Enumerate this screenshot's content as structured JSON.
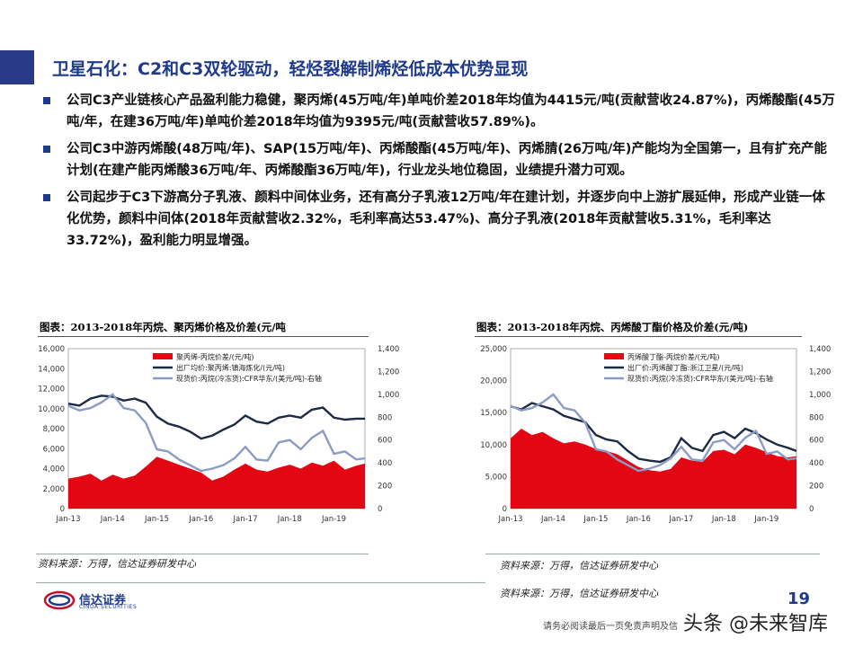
{
  "header": {
    "title": "卫星石化：C2和C3双轮驱动，轻烃裂解制烯烃低成本优势显现"
  },
  "bullets": [
    "公司C3产业链核心产品盈利能力稳健，聚丙烯(45万吨/年)单吨价差2018年均值为4415元/吨(贡献营收24.87%)，丙烯酸酯(45万吨/年，在建36万吨/年)单吨价差2018年均值为9395元/吨(贡献营收57.89%)。",
    "公司C3中游丙烯酸(48万吨/年)、SAP(15万吨/年)、丙烯酸酯(45万吨/年)、丙烯腈(26万吨/年)产能均为全国第一，且有扩充产能计划(在建产能丙烯酸36万吨/年、丙烯酸酯36万吨/年)，行业龙头地位稳固，业绩提升潜力可观。",
    "公司起步于C3下游高分子乳液、颜料中间体业务，还有高分子乳液12万吨/年在建计划，并逐步向中上游扩展延伸，形成产业链一体化优势，颜料中间体(2018年贡献营收2.32%，毛利率高达53.47%)、高分子乳液(2018年贡献营收5.31%，毛利率达33.72%)，盈利能力明显增强。"
  ],
  "colors": {
    "brand": "#1f3a8a",
    "spread_fill": "#e30613",
    "price_line": "#1c2a44",
    "propane_line": "#8c9bc4"
  },
  "chart_data": [
    {
      "type": "area",
      "title": "图表：2013-2018年丙烷、聚丙烯价格及价差(元/吨",
      "x_ticks": [
        "Jan-13",
        "Jan-14",
        "Jan-15",
        "Jan-16",
        "Jan-17",
        "Jan-18",
        "Jan-19"
      ],
      "y_left_ticks": [
        "0",
        "2,000",
        "4,000",
        "6,000",
        "8,000",
        "10,000",
        "12,000",
        "14,000",
        "16,000"
      ],
      "y_right_ticks": [
        "0",
        "200",
        "400",
        "600",
        "800",
        "1,000",
        "1,200",
        "1,400"
      ],
      "ylim_left": [
        0,
        16000
      ],
      "ylim_right": [
        0,
        1400
      ],
      "xlim": [
        2013.0,
        2019.7
      ],
      "legend_position": "top",
      "series": [
        {
          "name": "聚丙烯-丙烷价差/(元/吨)",
          "kind": "area",
          "axis": "left",
          "x": [
            2013.0,
            2013.25,
            2013.5,
            2013.75,
            2014.0,
            2014.25,
            2014.5,
            2014.75,
            2015.0,
            2015.25,
            2015.5,
            2015.75,
            2016.0,
            2016.25,
            2016.5,
            2016.75,
            2017.0,
            2017.25,
            2017.5,
            2017.75,
            2018.0,
            2018.25,
            2018.5,
            2018.75,
            2019.0,
            2019.25,
            2019.5,
            2019.7
          ],
          "values": [
            3000,
            3200,
            3500,
            2800,
            3400,
            3000,
            3300,
            4200,
            5200,
            4800,
            4400,
            4000,
            3600,
            2800,
            3200,
            3900,
            4500,
            3900,
            3700,
            4100,
            4400,
            4000,
            4600,
            4300,
            4800,
            3900,
            4300,
            4500
          ]
        },
        {
          "name": "出厂均价:聚丙烯:镇海炼化/(元/吨)",
          "kind": "line",
          "axis": "left",
          "x": [
            2013.0,
            2013.25,
            2013.5,
            2013.75,
            2014.0,
            2014.25,
            2014.5,
            2014.75,
            2015.0,
            2015.25,
            2015.5,
            2015.75,
            2016.0,
            2016.25,
            2016.5,
            2016.75,
            2017.0,
            2017.25,
            2017.5,
            2017.75,
            2018.0,
            2018.25,
            2018.5,
            2018.75,
            2019.0,
            2019.25,
            2019.5,
            2019.7
          ],
          "values": [
            10500,
            10300,
            11000,
            11300,
            11200,
            10800,
            11000,
            10600,
            9200,
            8500,
            8200,
            7700,
            7000,
            7300,
            7900,
            8400,
            9300,
            8700,
            8500,
            9100,
            9300,
            9100,
            9900,
            10100,
            9100,
            8900,
            9000,
            9000
          ]
        },
        {
          "name": "现货价:丙烷(冷冻货):CFR华东/(美元/吨)-右轴",
          "kind": "line",
          "axis": "right",
          "x": [
            2013.0,
            2013.25,
            2013.5,
            2013.75,
            2014.0,
            2014.25,
            2014.5,
            2014.75,
            2015.0,
            2015.25,
            2015.5,
            2015.75,
            2016.0,
            2016.25,
            2016.5,
            2016.75,
            2017.0,
            2017.25,
            2017.5,
            2017.75,
            2018.0,
            2018.25,
            2018.5,
            2018.75,
            2019.0,
            2019.25,
            2019.5,
            2019.7
          ],
          "values": [
            900,
            860,
            880,
            930,
            1000,
            880,
            860,
            750,
            520,
            500,
            430,
            380,
            330,
            350,
            380,
            440,
            540,
            430,
            420,
            580,
            600,
            520,
            620,
            680,
            480,
            500,
            430,
            440
          ]
        }
      ]
    },
    {
      "type": "area",
      "title": "图表：2013-2018年丙烷、丙烯酸丁酯价格及价差(元/吨)",
      "x_ticks": [
        "Jan-13",
        "Jan-14",
        "Jan-15",
        "Jan-16",
        "Jan-17",
        "Jan-18",
        "Jan-19"
      ],
      "y_left_ticks": [
        "0",
        "5,000",
        "10,000",
        "15,000",
        "20,000",
        "25,000"
      ],
      "y_right_ticks": [
        "0",
        "200",
        "400",
        "600",
        "800",
        "1,000",
        "1,200",
        "1,400"
      ],
      "ylim_left": [
        0,
        25000
      ],
      "ylim_right": [
        0,
        1400
      ],
      "xlim": [
        2013.0,
        2019.7
      ],
      "legend_position": "top",
      "series": [
        {
          "name": "丙烯酸丁酯-丙烷价差/(元/吨)",
          "kind": "area",
          "axis": "left",
          "x": [
            2013.0,
            2013.25,
            2013.5,
            2013.75,
            2014.0,
            2014.25,
            2014.5,
            2014.75,
            2015.0,
            2015.25,
            2015.5,
            2015.75,
            2016.0,
            2016.25,
            2016.5,
            2016.75,
            2017.0,
            2017.25,
            2017.5,
            2017.75,
            2018.0,
            2018.25,
            2018.5,
            2018.75,
            2019.0,
            2019.25,
            2019.5,
            2019.7
          ],
          "values": [
            11000,
            12500,
            11500,
            12000,
            11000,
            10200,
            10500,
            10000,
            9300,
            9000,
            8500,
            7500,
            6500,
            6000,
            5800,
            6200,
            8000,
            7500,
            7300,
            9000,
            9200,
            8500,
            10000,
            9500,
            8800,
            8200,
            8000,
            8200
          ]
        },
        {
          "name": "出厂价:丙烯酸丁酯:浙江卫星/(元/吨)",
          "kind": "line",
          "axis": "left",
          "x": [
            2013.0,
            2013.25,
            2013.5,
            2013.75,
            2014.0,
            2014.25,
            2014.5,
            2014.75,
            2015.0,
            2015.25,
            2015.5,
            2015.75,
            2016.0,
            2016.25,
            2016.5,
            2016.75,
            2017.0,
            2017.25,
            2017.5,
            2017.75,
            2018.0,
            2018.25,
            2018.5,
            2018.75,
            2019.0,
            2019.25,
            2019.5,
            2019.7
          ],
          "values": [
            16000,
            15500,
            16500,
            16000,
            15500,
            14500,
            14000,
            13500,
            11500,
            10800,
            10500,
            9000,
            7800,
            7500,
            7300,
            8000,
            11000,
            9500,
            9000,
            11500,
            12000,
            11000,
            12500,
            11800,
            10800,
            10000,
            9500,
            9000
          ]
        },
        {
          "name": "现货价:丙烷(冷冻货):CFR华东/(美元/吨)-右轴",
          "kind": "line",
          "axis": "right",
          "x": [
            2013.0,
            2013.25,
            2013.5,
            2013.75,
            2014.0,
            2014.25,
            2014.5,
            2014.75,
            2015.0,
            2015.25,
            2015.5,
            2015.75,
            2016.0,
            2016.25,
            2016.5,
            2016.75,
            2017.0,
            2017.25,
            2017.5,
            2017.75,
            2018.0,
            2018.25,
            2018.5,
            2018.75,
            2019.0,
            2019.25,
            2019.5,
            2019.7
          ],
          "values": [
            900,
            860,
            880,
            930,
            1000,
            880,
            860,
            750,
            520,
            500,
            430,
            380,
            330,
            350,
            380,
            440,
            540,
            430,
            420,
            580,
            600,
            520,
            620,
            680,
            480,
            500,
            430,
            440
          ]
        }
      ]
    }
  ],
  "sources": {
    "left": "资料来源：万得，信达证券研发中心",
    "right_top": "资料来源：万得，信达证券研发中心",
    "right_bottom": "资料来源：万得，信达证券研发中心"
  },
  "footer": {
    "logo_text": "信达证券",
    "logo_sub": "CINDA SECURITIES",
    "page_number": "19",
    "disclaimer": "请务必阅读最后一页免责声明及信",
    "watermark": "头条 @未来智库"
  }
}
